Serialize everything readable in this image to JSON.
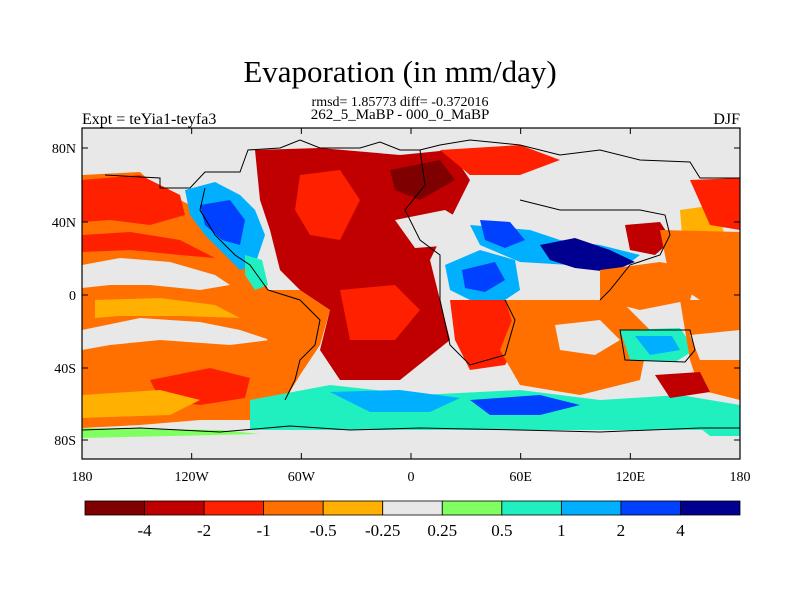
{
  "figure": {
    "title": "Evaporation (in mm/day)",
    "stats": "rmsd= 1.85773 diff= -0.372016",
    "subtitle": "262_5_MaBP - 000_0_MaBP",
    "left_label": "Expt = teYia1-teyfa3",
    "right_label": "DJF"
  },
  "axes": {
    "x_ticks": [
      "180",
      "120W",
      "60W",
      "0",
      "60E",
      "120E",
      "180"
    ],
    "y_ticks": [
      "80N",
      "40N",
      "0",
      "40S",
      "80S"
    ]
  },
  "colorbar": {
    "colors": [
      "#7f0000",
      "#c00000",
      "#ff2000",
      "#ff7000",
      "#ffb000",
      "#e8e8e8",
      "#80ff60",
      "#20f0c0",
      "#00b0ff",
      "#0040ff",
      "#000090"
    ],
    "labels": [
      "-4",
      "-2",
      "-1",
      "-0.5",
      "-0.25",
      "0.25",
      "0.5",
      "1",
      "2",
      "4"
    ]
  },
  "map_colors": {
    "background": "#e8e8e8",
    "coastline": "#000000"
  }
}
